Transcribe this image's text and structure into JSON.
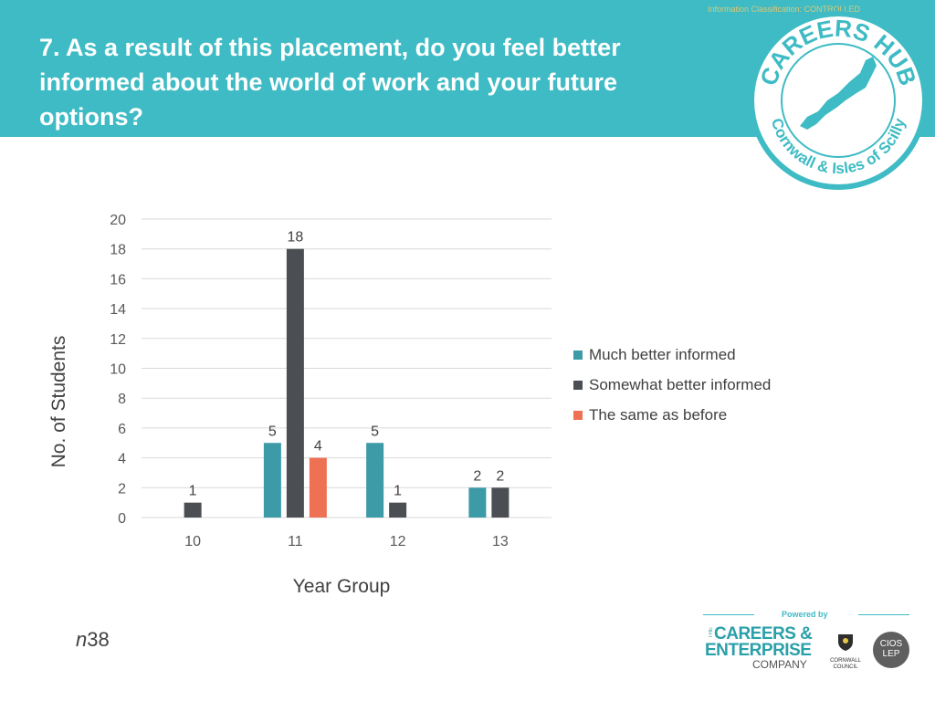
{
  "header": {
    "classification": "Information Classification: CONTROLLED",
    "title": "7. As a result of this placement, do you feel better informed about the world of work and your future options?"
  },
  "badge": {
    "top_text": "CAREERS HUB",
    "bottom_text": "Cornwall & Isles of Scilly"
  },
  "chart_data": {
    "type": "bar",
    "title": "",
    "xlabel": "Year Group",
    "ylabel": "No. of Students",
    "categories": [
      "10",
      "11",
      "12",
      "13"
    ],
    "series": [
      {
        "name": "Much better informed",
        "color": "#3d9aa7",
        "values": [
          null,
          5,
          5,
          2
        ]
      },
      {
        "name": "Somewhat better informed",
        "color": "#4b4f54",
        "values": [
          1,
          18,
          1,
          2
        ]
      },
      {
        "name": "The same as before",
        "color": "#ee7154",
        "values": [
          null,
          4,
          null,
          null
        ]
      }
    ],
    "ylim": [
      0,
      20
    ],
    "yticks": [
      0,
      2,
      4,
      6,
      8,
      10,
      12,
      14,
      16,
      18,
      20
    ],
    "grid": true,
    "legend_position": "right",
    "data_labels": true
  },
  "sample": {
    "prefix": "n",
    "value": "38"
  },
  "footer": {
    "powered_by": "Powered by",
    "cec_the": "THE",
    "cec_line1": "CAREERS &",
    "cec_line2": "ENTERPRISE",
    "cec_line3": "COMPANY",
    "council": "CORNWALL COUNCIL",
    "lep_line1": "CIOS",
    "lep_line2": "LEP"
  }
}
